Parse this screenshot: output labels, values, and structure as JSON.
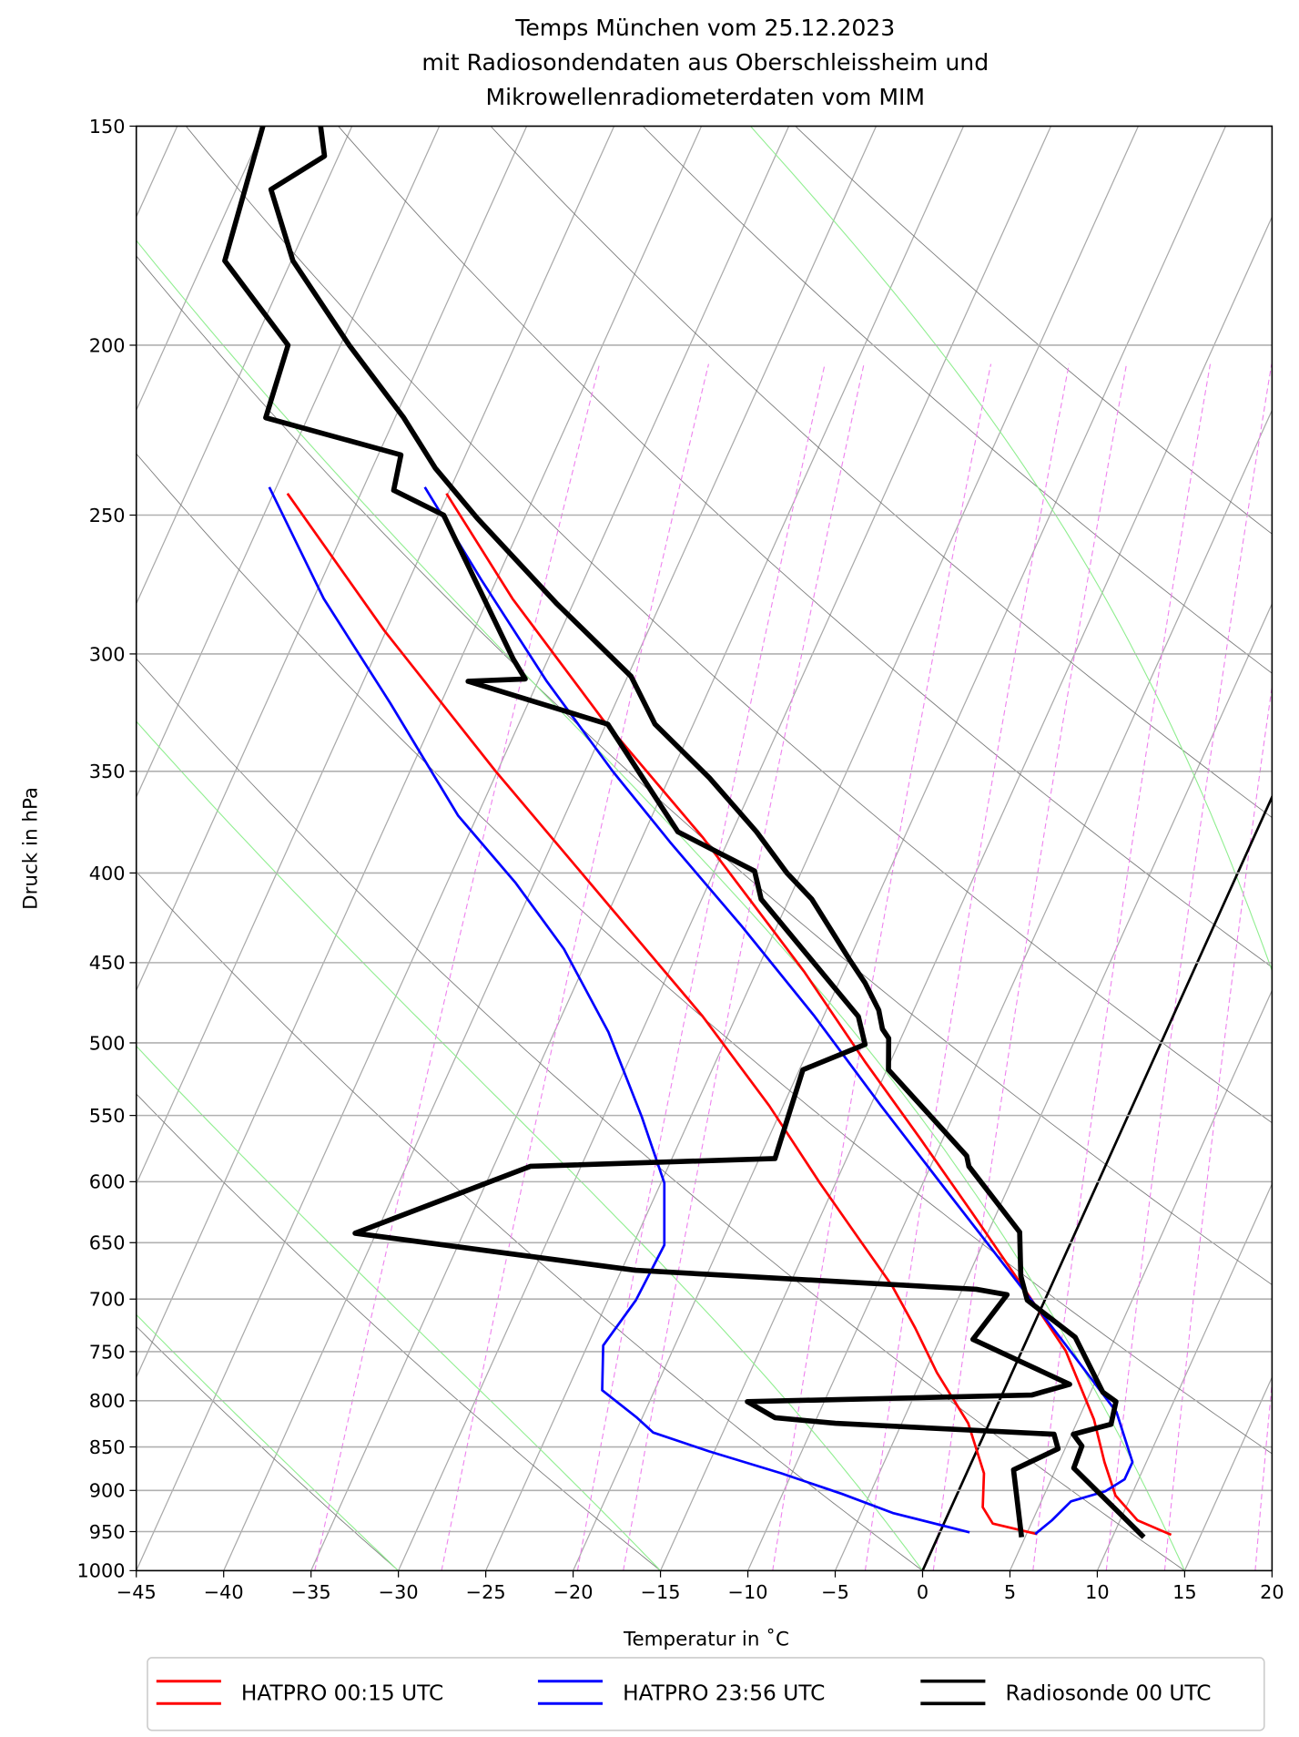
{
  "chart_data": {
    "type": "line",
    "subtype": "skew-T log-p diagram",
    "title": [
      "Temps München vom 25.12.2023",
      "mit Radiosondendaten aus Oberschleissheim und",
      "Mikrowellenradiometerdaten vom MIM"
    ],
    "xlabel": "Temperatur in $^\\circ$C",
    "xlabel_display": "Temperatur in ˚C",
    "ylabel": "Druck in hPa",
    "xlim": [
      -45,
      20
    ],
    "ylim": [
      1000,
      150
    ],
    "yscale": "log",
    "xticks": [
      -45,
      -40,
      -35,
      -30,
      -25,
      -20,
      -15,
      -10,
      -5,
      0,
      5,
      10,
      15,
      20
    ],
    "xtick_labels": [
      "−45",
      "−40",
      "−35",
      "−30",
      "−25",
      "−20",
      "−15",
      "−10",
      "−5",
      "0",
      "5",
      "10",
      "15",
      "20"
    ],
    "yticks": [
      1000,
      950,
      900,
      850,
      800,
      750,
      700,
      650,
      600,
      550,
      500,
      450,
      400,
      350,
      300,
      250,
      200,
      150
    ],
    "ytick_labels": [
      "1000",
      "950",
      "900",
      "850",
      "800",
      "750",
      "700",
      "650",
      "600",
      "550",
      "500",
      "450",
      "400",
      "350",
      "300",
      "250",
      "200",
      "150"
    ],
    "grid": true,
    "legend": {
      "placement": "bottom-center (below axes)",
      "columns": 3
    },
    "series": [
      {
        "name": "HATPRO 00:15 UTC",
        "color": "#ff0000",
        "profiles": [
          {
            "kind": "temperature",
            "p": [
              243,
              279,
              327,
              382,
              455,
              512,
              567,
              624,
              686,
              749,
              820,
              867,
              906,
              936,
              954
            ],
            "T": [
              -55.1,
              -48.6,
              -40.3,
              -31.5,
              -22.3,
              -16.5,
              -11.3,
              -6.5,
              -1.8,
              2.5,
              5.9,
              7.6,
              9.1,
              11.0,
              13.3
            ]
          },
          {
            "kind": "dewpoint",
            "p": [
              243,
              291,
              350,
              420,
              483,
              543,
              601,
              647,
              688,
              727,
              771,
              824,
              880,
              920,
              940,
              953
            ],
            "T": [
              -64.2,
              -55.1,
              -45.1,
              -34.8,
              -26.9,
              -20.8,
              -15.9,
              -12.2,
              -9.1,
              -6.7,
              -4.3,
              -1.2,
              1.0,
              1.8,
              2.8,
              5.6
            ]
          }
        ]
      },
      {
        "name": "HATPRO 23:56 UTC",
        "color": "#0000ff",
        "profiles": [
          {
            "kind": "temperature",
            "p": [
              241,
              272,
              311,
              350,
              384,
              429,
              483,
              543,
              610,
              676,
              744,
              812,
              867,
              887,
              901,
              913,
              936,
              953
            ],
            "T": [
              -56.5,
              -50.9,
              -44.5,
              -38.4,
              -33.3,
              -27.0,
              -20.5,
              -14.4,
              -8.2,
              -2.7,
              2.4,
              7.0,
              9.2,
              9.2,
              8.4,
              6.7,
              6.1,
              5.5
            ]
          },
          {
            "kind": "dewpoint",
            "p": [
              241,
              279,
              320,
              371,
              405,
              442,
              493,
              551,
              601,
              652,
              701,
              744,
              789,
              818,
              834,
              855,
              880,
              904,
              927,
              951
            ],
            "T": [
              -65.4,
              -59.4,
              -52.9,
              -46.1,
              -41.1,
              -36.6,
              -31.9,
              -27.8,
              -24.8,
              -23.2,
              -23.4,
              -24.1,
              -23.0,
              -20.3,
              -19.0,
              -15.3,
              -10.6,
              -6.6,
              -3.2,
              1.7
            ]
          }
        ]
      },
      {
        "name": "Radiosonde 00 UTC",
        "color": "#000000",
        "profiles": [
          {
            "kind": "temperature",
            "p": [
              150,
              156,
              163,
              179,
              200,
              220,
              235,
              251,
              281,
              309,
              329,
              353,
              379,
              400,
              414,
              448,
              462,
              479,
              491,
              497,
              518,
              580,
              588,
              641,
              679,
              701,
              736,
              791,
              801,
              825,
              836,
              849,
              874,
              957
            ],
            "T": [
              -71.8,
              -70.8,
              -73.0,
              -69.9,
              -64.5,
              -59.5,
              -56.4,
              -52.7,
              -45.9,
              -39.8,
              -37.2,
              -32.7,
              -28.6,
              -25.8,
              -23.7,
              -20.0,
              -18.5,
              -17.0,
              -16.3,
              -15.7,
              -14.9,
              -8.2,
              -7.8,
              -3.2,
              -2.0,
              -1.0,
              2.7,
              5.7,
              6.7,
              7.0,
              5.1,
              5.9,
              6.0,
              11.8
            ]
          },
          {
            "kind": "dewpoint",
            "p": [
              150,
              179,
              200,
              220,
              231,
              242,
              250,
              302,
              310,
              311,
              329,
              379,
              399,
              414,
              483,
              501,
              518,
              582,
              588,
              642,
              674,
              691,
              696,
              738,
              783,
              794,
              801,
              818,
              824,
              836,
              852,
              876,
              957
            ],
            "T": [
              -75.1,
              -73.8,
              -68.0,
              -67.4,
              -58.7,
              -58.2,
              -54.7,
              -47.0,
              -45.8,
              -49.0,
              -39.9,
              -33.1,
              -27.7,
              -26.6,
              -18.0,
              -16.9,
              -19.8,
              -19.1,
              -32.9,
              -41.2,
              -24.2,
              -4.2,
              -2.3,
              -3.1,
              3.6,
              1.7,
              -14.4,
              -12.4,
              -8.8,
              4.0,
              4.6,
              2.6,
              4.8
            ]
          }
        ]
      }
    ],
    "reference_lines": {
      "highlighted_isotherm_C": 0,
      "isotherms_step_C": 5,
      "dry_adiabats_T1000_C": [
        -75,
        -60,
        -45,
        -30,
        -15,
        0,
        15,
        30,
        45,
        60,
        75,
        90,
        105,
        120
      ],
      "moist_adiabats_T1000_C": [
        -45,
        -30,
        -15,
        0,
        15,
        30
      ],
      "mixing_ratios_g_per_kg": [
        0.2,
        0.4,
        0.8,
        1,
        2,
        3,
        4,
        6,
        8,
        10,
        14
      ],
      "mixing_ratio_top_hPa": 205,
      "colors": {
        "isotherm": "#a9a9a9",
        "dry_adiabat": "#777777",
        "moist_adiabat": "#90ee90",
        "mixing_ratio": "#ee82ee"
      }
    }
  }
}
